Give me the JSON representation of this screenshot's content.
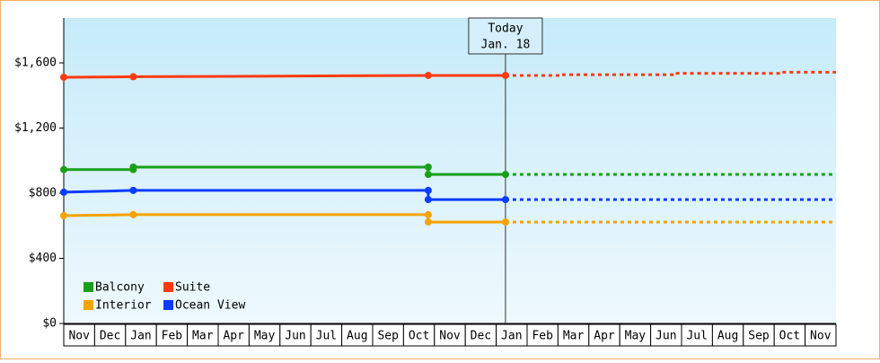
{
  "chart_data": {
    "type": "line",
    "categories": [
      "Nov",
      "Dec",
      "Jan",
      "Feb",
      "Mar",
      "Apr",
      "May",
      "Jun",
      "Jul",
      "Aug",
      "Sep",
      "Oct",
      "Nov",
      "Dec",
      "Jan",
      "Feb",
      "Mar",
      "Apr",
      "May",
      "Jun",
      "Jul",
      "Aug",
      "Sep",
      "Oct",
      "Nov"
    ],
    "xlim": [
      0,
      25
    ],
    "ylim": [
      0,
      1876
    ],
    "yticks": [
      {
        "value": 0,
        "label": "$0"
      },
      {
        "value": 400,
        "label": "$400"
      },
      {
        "value": 800,
        "label": "$800"
      },
      {
        "value": 1200,
        "label": "$1,200"
      },
      {
        "value": 1600,
        "label": "$1,600"
      }
    ],
    "today": {
      "x": 14.3,
      "label": "Today",
      "date": "Jan. 18"
    },
    "series": [
      {
        "name": "Balcony",
        "color": "#19a019",
        "x": [
          0,
          2.25,
          2.25,
          11.8,
          11.8,
          14.3
        ],
        "values": [
          945,
          945,
          960,
          960,
          915,
          915
        ],
        "forecast_x": [
          14.3,
          25
        ],
        "forecast_values": [
          915,
          915
        ]
      },
      {
        "name": "Suite",
        "color": "#ff3a10",
        "x": [
          0,
          2.25,
          11.8,
          14.3
        ],
        "values": [
          1512,
          1515,
          1523,
          1523
        ],
        "forecast_x": [
          14.3,
          16.1,
          16.1,
          19.7,
          19.7,
          23.2,
          23.2,
          25
        ],
        "forecast_values": [
          1523,
          1523,
          1528,
          1528,
          1536,
          1536,
          1543,
          1543
        ]
      },
      {
        "name": "Interior",
        "color": "#f5a300",
        "x": [
          0,
          2.25,
          11.8,
          11.8,
          14.3
        ],
        "values": [
          662,
          668,
          668,
          623,
          623
        ],
        "forecast_x": [
          14.3,
          25
        ],
        "forecast_values": [
          623,
          623
        ]
      },
      {
        "name": "Ocean View",
        "color": "#0a3cff",
        "x": [
          0,
          2.25,
          11.8,
          11.8,
          14.3
        ],
        "values": [
          806,
          817,
          817,
          761,
          761
        ],
        "forecast_x": [
          14.3,
          25
        ],
        "forecast_values": [
          761,
          761
        ]
      }
    ]
  }
}
